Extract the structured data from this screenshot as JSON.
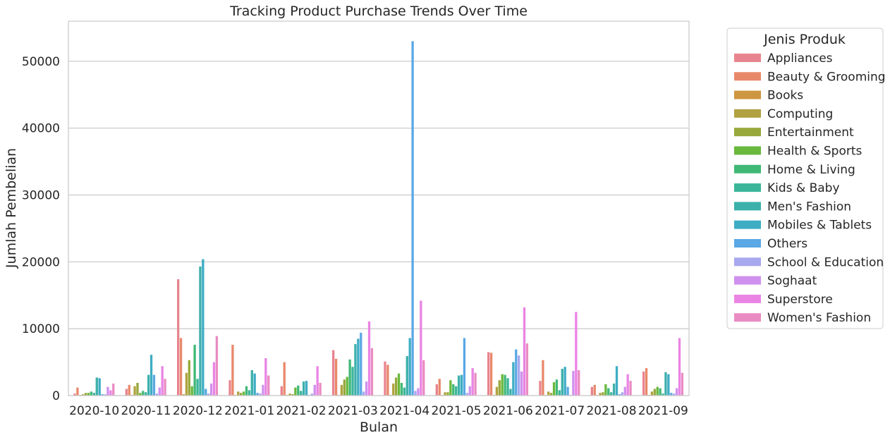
{
  "chart_data": {
    "type": "bar",
    "title": "Tracking Product Purchase Trends Over Time",
    "xlabel": "Bulan",
    "ylabel": "Jumlah Pembelian",
    "ylim": [
      0,
      56000
    ],
    "yticks": [
      0,
      10000,
      20000,
      30000,
      40000,
      50000
    ],
    "ytick_labels": [
      "0",
      "10000",
      "20000",
      "30000",
      "40000",
      "50000"
    ],
    "grid": true,
    "legend_title": "Jenis Produk",
    "legend_position": "outside-right",
    "categories": [
      "2020-10",
      "2020-11",
      "2020-12",
      "2021-01",
      "2021-02",
      "2021-03",
      "2021-04",
      "2021-05",
      "2021-06",
      "2021-07",
      "2021-08",
      "2021-09"
    ],
    "series": [
      {
        "name": "Appliances",
        "color": "#e8848f",
        "values": [
          300,
          1000,
          17400,
          2300,
          1400,
          6800,
          5100,
          1700,
          6500,
          2200,
          1300,
          3600
        ]
      },
      {
        "name": "Beauty & Grooming",
        "color": "#e8886a",
        "values": [
          1200,
          1600,
          8600,
          7600,
          5000,
          5500,
          4600,
          2500,
          6400,
          5300,
          1600,
          4100
        ]
      },
      {
        "name": "Books",
        "color": "#cf9640",
        "values": [
          100,
          100,
          200,
          100,
          100,
          100,
          100,
          100,
          100,
          100,
          100,
          100
        ]
      },
      {
        "name": "Computing",
        "color": "#b0a240",
        "values": [
          200,
          1400,
          3400,
          600,
          300,
          1600,
          1800,
          500,
          1300,
          600,
          400,
          600
        ]
      },
      {
        "name": "Entertainment",
        "color": "#98a83a",
        "values": [
          400,
          1900,
          5300,
          400,
          200,
          2400,
          2700,
          500,
          2300,
          400,
          500,
          1000
        ]
      },
      {
        "name": "Health & Sports",
        "color": "#6ab83c",
        "values": [
          400,
          400,
          1400,
          600,
          1200,
          2800,
          3300,
          2300,
          3200,
          2000,
          1700,
          1300
        ]
      },
      {
        "name": "Home & Living",
        "color": "#40b876",
        "values": [
          600,
          700,
          7600,
          1400,
          1500,
          5400,
          1900,
          1700,
          3100,
          2400,
          1100,
          1100
        ]
      },
      {
        "name": "Kids & Baby",
        "color": "#3bb59a",
        "values": [
          400,
          500,
          2500,
          800,
          700,
          4300,
          1200,
          1400,
          2600,
          800,
          500,
          300
        ]
      },
      {
        "name": "Men's Fashion",
        "color": "#3cb0aa",
        "values": [
          2700,
          3100,
          19300,
          3800,
          2100,
          7700,
          5900,
          3000,
          1000,
          4000,
          1800,
          3500
        ]
      },
      {
        "name": "Mobiles & Tablets",
        "color": "#3eadc4",
        "values": [
          2600,
          6100,
          20400,
          3300,
          2200,
          8500,
          8600,
          3100,
          5000,
          4300,
          4400,
          3200
        ]
      },
      {
        "name": "Others",
        "color": "#5aa8e4",
        "values": [
          200,
          3100,
          1000,
          400,
          100,
          9400,
          53000,
          8600,
          6900,
          1300,
          200,
          400
        ]
      },
      {
        "name": "School & Education",
        "color": "#a8a8ee",
        "values": [
          200,
          300,
          300,
          300,
          300,
          600,
          700,
          400,
          6000,
          100,
          500,
          300
        ]
      },
      {
        "name": "Soghaat",
        "color": "#cf90ee",
        "values": [
          1300,
          1200,
          1800,
          1600,
          1600,
          2100,
          1100,
          1400,
          3600,
          3700,
          1300,
          1100
        ]
      },
      {
        "name": "Superstore",
        "color": "#ea84e4",
        "values": [
          800,
          4400,
          5000,
          5600,
          4400,
          11100,
          14200,
          4100,
          13200,
          12500,
          3200,
          8600
        ]
      },
      {
        "name": "Women's Fashion",
        "color": "#e98cc2",
        "values": [
          1800,
          2500,
          8900,
          3000,
          1900,
          7100,
          5300,
          3400,
          7800,
          3800,
          2200,
          3400
        ]
      }
    ]
  }
}
